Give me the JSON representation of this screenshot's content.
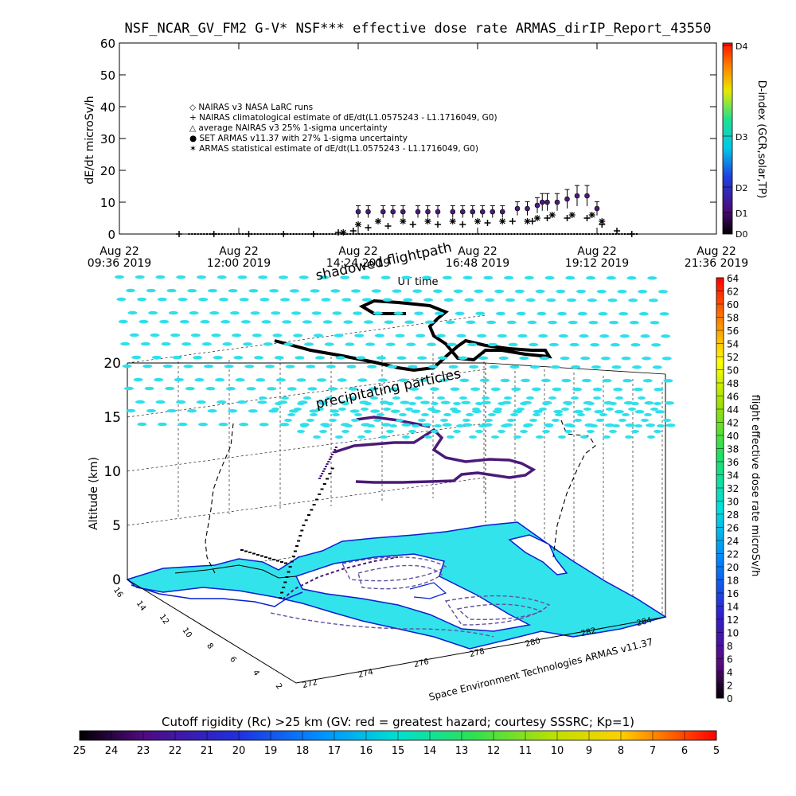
{
  "title": "NSF_NCAR_GV_FM2 G-V* NSF*** effective dose rate ARMAS_dirIP_Report_43550",
  "chart_data": [
    {
      "type": "scatter",
      "ylabel": "dE/dt microSv/h",
      "xlabel": "UT time",
      "ylim": [
        0,
        60
      ],
      "yticks": [
        "0",
        "10",
        "20",
        "30",
        "40",
        "50",
        "60"
      ],
      "xticks": [
        [
          "Aug 22",
          "09:36 2019"
        ],
        [
          "Aug 22",
          "12:00 2019"
        ],
        [
          "Aug 22",
          "14:24 2019"
        ],
        [
          "Aug 22",
          "16:48 2019"
        ],
        [
          "Aug 22",
          "19:12 2019"
        ],
        [
          "Aug 22",
          "21:36 2019"
        ]
      ],
      "legend": [
        "◇ NAIRAS v3 NASA LaRC runs",
        "+ NAIRAS climatological estimate of dE/dt(L1.0575243 - L1.1716049, G0)",
        "△ average NAIRAS v3 25% 1-sigma uncertainty",
        "● SET ARMAS v11.37 with 27% 1-sigma uncertainty",
        "✶ ARMAS statistical estimate of dE/dt(L1.0575243 - L1.1716049, G0)"
      ],
      "series": [
        {
          "name": "SET ARMAS v11.37 with 27% 1-sigma uncertainty",
          "x_hours": [
            14.4,
            14.6,
            14.9,
            15.1,
            15.3,
            15.6,
            15.8,
            16.0,
            16.3,
            16.5,
            16.7,
            16.9,
            17.1,
            17.3,
            17.6,
            17.8,
            18.0,
            18.1,
            18.2,
            18.4,
            18.6,
            18.8,
            19.0,
            19.2
          ],
          "values": [
            7,
            7,
            7,
            7,
            7,
            7,
            7,
            7,
            7,
            7,
            7,
            7,
            7,
            7,
            8,
            8,
            9,
            10,
            10,
            10,
            11,
            12,
            12,
            8
          ]
        },
        {
          "name": "NAIRAS climatological estimate",
          "x_hours": [
            10.8,
            11.5,
            12.2,
            12.9,
            13.5,
            14.0,
            14.3,
            14.6,
            15.0,
            15.5,
            16.0,
            16.5,
            17.0,
            17.5,
            17.9,
            18.2,
            18.6,
            19.0,
            19.3,
            19.6,
            19.9
          ],
          "values": [
            0,
            0,
            0,
            0,
            0,
            0.5,
            1,
            2,
            2.5,
            3,
            3,
            3,
            3.5,
            4,
            4,
            5,
            5,
            5,
            3,
            1,
            0
          ]
        },
        {
          "name": "ARMAS statistical estimate",
          "x_hours": [
            14.1,
            14.4,
            14.8,
            15.3,
            15.8,
            16.3,
            16.8,
            17.3,
            17.8,
            18.0,
            18.3,
            18.7,
            19.1,
            19.3
          ],
          "values": [
            0.5,
            3,
            4,
            4,
            4,
            4,
            4,
            4,
            4,
            5,
            6,
            6,
            6,
            4
          ]
        }
      ],
      "colorbar": {
        "title": "D-index (GCR,solar,TP)",
        "labels": [
          "D4",
          "D3",
          "D2",
          "D1",
          "D0"
        ]
      }
    },
    {
      "type": "scatter",
      "ylabel": "Altitude (km)",
      "zticks": [
        "0",
        "5",
        "10",
        "15",
        "20"
      ],
      "lon_ticks": [
        "272",
        "274",
        "276",
        "278",
        "280",
        "282",
        "284"
      ],
      "lat_ticks": [
        "2",
        "4",
        "6",
        "8",
        "10",
        "12",
        "14",
        "16"
      ],
      "annotations": [
        "shadowed flightpath",
        "precipitating particles"
      ],
      "credit": "Space Environment Technologies ARMAS v11.37",
      "colorbar": {
        "title": "flight effective dose rate microSv/h",
        "min": 0,
        "max": 64,
        "labels": [
          "64",
          "62",
          "60",
          "58",
          "56",
          "54",
          "52",
          "50",
          "48",
          "46",
          "44",
          "42",
          "40",
          "38",
          "36",
          "34",
          "32",
          "30",
          "28",
          "26",
          "24",
          "22",
          "20",
          "18",
          "16",
          "14",
          "12",
          "10",
          "8",
          "6",
          "4",
          "2",
          "0"
        ]
      }
    }
  ],
  "bottom_colorbar": {
    "title": "Cutoff rigidity (Rc) >25 km (GV: red = greatest hazard; courtesy SSSRC; Kp=1)",
    "labels": [
      "25",
      "24",
      "23",
      "22",
      "21",
      "20",
      "19",
      "18",
      "17",
      "16",
      "15",
      "14",
      "13",
      "12",
      "11",
      "10",
      "9",
      "8",
      "7",
      "6",
      "5"
    ]
  },
  "colors": {
    "ocean": "#33e3ec",
    "land": "#ffffff",
    "flight": "#4b1a78",
    "rc_dash": "#00c8dc"
  }
}
